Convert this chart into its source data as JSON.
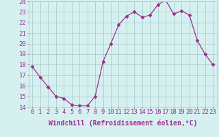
{
  "x": [
    0,
    1,
    2,
    3,
    4,
    5,
    6,
    7,
    8,
    9,
    10,
    11,
    12,
    13,
    14,
    15,
    16,
    17,
    18,
    19,
    20,
    21,
    22,
    23
  ],
  "y": [
    17.8,
    16.8,
    15.9,
    15.0,
    14.8,
    14.2,
    14.1,
    14.1,
    15.0,
    18.3,
    20.0,
    21.8,
    22.6,
    23.0,
    22.5,
    22.7,
    23.7,
    24.1,
    22.8,
    23.1,
    22.7,
    20.3,
    19.0,
    18.0
  ],
  "line_color": "#9b2d8e",
  "marker": "D",
  "marker_size": 2.5,
  "bg_color": "#d6f0f0",
  "grid_color": "#aacece",
  "xlabel": "Windchill (Refroidissement éolien,°C)",
  "xlabel_fontsize": 7,
  "tick_label_fontsize": 6.5,
  "ylim": [
    14,
    24
  ],
  "xlim": [
    -0.5,
    23.5
  ],
  "yticks": [
    14,
    15,
    16,
    17,
    18,
    19,
    20,
    21,
    22,
    23,
    24
  ],
  "xticks": [
    0,
    1,
    2,
    3,
    4,
    5,
    6,
    7,
    8,
    9,
    10,
    11,
    12,
    13,
    14,
    15,
    16,
    17,
    18,
    19,
    20,
    21,
    22,
    23
  ]
}
